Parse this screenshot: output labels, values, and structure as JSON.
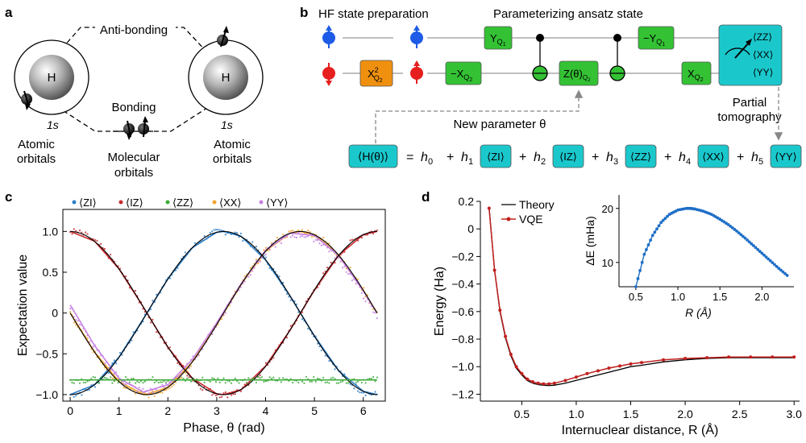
{
  "panel_a": {
    "label": "a",
    "atom": "H",
    "orbital": "1s",
    "anti_bonding": "Anti-bonding",
    "bonding": "Bonding",
    "left_caption": [
      "Atomic",
      "orbitals"
    ],
    "middle_caption": [
      "Molecular",
      "orbitals"
    ],
    "right_caption": [
      "Atomic",
      "orbitals"
    ]
  },
  "panel_b": {
    "label": "b",
    "hf_title": "HF state preparation",
    "ansatz_title": "Parameterizing ansatz state",
    "gates": {
      "xq2_squared": "X",
      "y_q1": "Y",
      "neg_x_q2": "−X",
      "z_theta": "Z(θ)",
      "neg_y_q1": "−Y",
      "x_q2": "X",
      "q1": "Q",
      "q2": "Q",
      "sub1": "1",
      "sub2": "2",
      "sup2": "2"
    },
    "tomo_box": [
      "⟨ZZ⟩",
      "⟨XX⟩",
      "⟨YY⟩"
    ],
    "new_param": "New parameter θ",
    "partial_tomography": [
      "Partial",
      "tomography"
    ],
    "equation": {
      "lhs": "⟨H(θ)⟩",
      "terms": [
        {
          "op": "=",
          "coef": "h",
          "idx": "0",
          "box": ""
        },
        {
          "op": "+",
          "coef": "h",
          "idx": "1",
          "box": "⟨ZI⟩"
        },
        {
          "op": "+",
          "coef": "h",
          "idx": "2",
          "box": "⟨IZ⟩"
        },
        {
          "op": "+",
          "coef": "h",
          "idx": "3",
          "box": "⟨ZZ⟩"
        },
        {
          "op": "+",
          "coef": "h",
          "idx": "4",
          "box": "⟨XX⟩"
        },
        {
          "op": "+",
          "coef": "h",
          "idx": "5",
          "box": "⟨YY⟩"
        }
      ]
    }
  },
  "colors": {
    "cyan": "#1ac8cc",
    "green": "#34c234",
    "orange": "#f0900f",
    "spin_blue": "#1e5be6",
    "spin_red": "#e61e1e",
    "zi": "#2f7fc8",
    "iz": "#c8282d",
    "zz": "#3daa3a",
    "xx": "#f2a52e",
    "yy": "#c680e2",
    "vqe": "#c0201e",
    "inset": "#1f6fc7"
  },
  "chart_data": [
    {
      "panel": "c",
      "type": "scatter",
      "xlabel": "Phase, θ (rad)",
      "ylabel": "Expectation value",
      "xlim": [
        -0.15,
        6.45
      ],
      "ylim": [
        -1.08,
        1.27
      ],
      "x_ticks": [
        0,
        1,
        2,
        3,
        4,
        5,
        6
      ],
      "y_ticks": [
        1.0,
        0.5,
        0,
        -0.5,
        -1.0
      ],
      "y_tick_labels": [
        "1.0",
        "0.5",
        "0",
        "−0.5",
        "−1.0"
      ],
      "legend": [
        "⟨ZI⟩",
        "⟨IZ⟩",
        "⟨ZZ⟩",
        "⟨XX⟩",
        "⟨YY⟩"
      ],
      "legend_position": "top",
      "theory_line_color": "#000000",
      "series": [
        {
          "name": "⟨ZI⟩",
          "key": "zi",
          "model": "-cos",
          "x": [
            0,
            0.5,
            1.0,
            1.5,
            2.0,
            2.5,
            3.0,
            3.14,
            3.5,
            4.0,
            4.5,
            5.0,
            5.5,
            6.0,
            6.28
          ],
          "values": [
            -1.0,
            -0.88,
            -0.54,
            -0.07,
            0.42,
            0.8,
            0.99,
            1.0,
            0.94,
            0.65,
            0.21,
            -0.28,
            -0.71,
            -0.96,
            -1.0
          ]
        },
        {
          "name": "⟨IZ⟩",
          "key": "iz",
          "model": "cos",
          "x": [
            0,
            0.5,
            1.0,
            1.5,
            2.0,
            2.5,
            3.0,
            3.14,
            3.5,
            4.0,
            4.5,
            5.0,
            5.5,
            6.0,
            6.28
          ],
          "values": [
            1.0,
            0.88,
            0.54,
            0.07,
            -0.42,
            -0.8,
            -0.99,
            -1.0,
            -0.94,
            -0.65,
            -0.21,
            0.28,
            0.71,
            0.96,
            1.0
          ]
        },
        {
          "name": "⟨ZZ⟩",
          "key": "zz",
          "model": "const",
          "x": [
            0,
            1,
            2,
            3,
            4,
            5,
            6,
            6.28
          ],
          "values": [
            -0.82,
            -0.82,
            -0.82,
            -0.82,
            -0.82,
            -0.82,
            -0.82,
            -0.82
          ]
        },
        {
          "name": "⟨XX⟩",
          "key": "xx",
          "model": "-sin",
          "x": [
            0,
            0.5,
            1.0,
            1.5,
            1.57,
            2.0,
            2.5,
            3.0,
            3.5,
            4.0,
            4.5,
            4.71,
            5.0,
            5.5,
            6.0,
            6.28
          ],
          "values": [
            0.0,
            -0.48,
            -0.84,
            -1.0,
            -1.0,
            -0.91,
            -0.6,
            -0.14,
            0.35,
            0.76,
            0.98,
            1.0,
            0.96,
            0.71,
            0.28,
            0.0
          ]
        },
        {
          "name": "⟨YY⟩",
          "key": "yy",
          "model": "-sin",
          "x": [
            0,
            0.5,
            1.0,
            1.5,
            2.0,
            2.5,
            3.0,
            3.5,
            4.0,
            4.5,
            5.0,
            5.5,
            6.0,
            6.28
          ],
          "values": [
            0.1,
            -0.4,
            -0.8,
            -0.97,
            -0.88,
            -0.57,
            -0.12,
            0.36,
            0.77,
            0.98,
            0.95,
            0.7,
            0.27,
            0.0
          ]
        }
      ]
    },
    {
      "panel": "d",
      "type": "line",
      "xlabel": "Internuclear distance, R (Å)",
      "ylabel": "Energy (Ha)",
      "xlim": [
        0.12,
        3.05
      ],
      "ylim": [
        -1.25,
        0.2
      ],
      "x_ticks": [
        0.5,
        1.0,
        1.5,
        2.0,
        2.5,
        3.0
      ],
      "x_tick_labels": [
        "0.5",
        "1.0",
        "1.5",
        "2.0",
        "2.5",
        "3.0"
      ],
      "y_ticks": [
        0.2,
        0,
        -0.2,
        -0.4,
        -0.6,
        -0.8,
        -1.0,
        -1.2
      ],
      "y_tick_labels": [
        "0.2",
        "0",
        "−0.2",
        "−0.4",
        "−0.6",
        "−0.8",
        "−1.0",
        "−1.2"
      ],
      "legend": [
        "Theory",
        "VQE"
      ],
      "legend_position": "top-left",
      "series": [
        {
          "name": "Theory",
          "x": [
            0.2,
            0.25,
            0.3,
            0.35,
            0.4,
            0.45,
            0.5,
            0.55,
            0.6,
            0.65,
            0.7,
            0.75,
            0.8,
            0.9,
            1.0,
            1.1,
            1.2,
            1.3,
            1.4,
            1.5,
            1.6,
            1.8,
            2.0,
            2.2,
            2.4,
            2.6,
            2.8,
            3.0
          ],
          "values": [
            0.16,
            -0.3,
            -0.6,
            -0.79,
            -0.92,
            -1.01,
            -1.06,
            -1.1,
            -1.12,
            -1.13,
            -1.135,
            -1.137,
            -1.134,
            -1.12,
            -1.1,
            -1.08,
            -1.06,
            -1.04,
            -1.02,
            -1.0,
            -0.99,
            -0.965,
            -0.95,
            -0.94,
            -0.935,
            -0.935,
            -0.935,
            -0.935
          ]
        },
        {
          "name": "VQE",
          "x": [
            0.2,
            0.25,
            0.3,
            0.35,
            0.4,
            0.45,
            0.5,
            0.55,
            0.6,
            0.65,
            0.7,
            0.75,
            0.8,
            0.9,
            1.0,
            1.1,
            1.2,
            1.3,
            1.4,
            1.5,
            1.6,
            1.8,
            2.0,
            2.2,
            2.4,
            2.6,
            2.8,
            3.0
          ],
          "values": [
            0.15,
            -0.3,
            -0.59,
            -0.78,
            -0.91,
            -1.0,
            -1.05,
            -1.09,
            -1.11,
            -1.12,
            -1.125,
            -1.125,
            -1.12,
            -1.1,
            -1.075,
            -1.05,
            -1.03,
            -1.01,
            -0.995,
            -0.98,
            -0.97,
            -0.95,
            -0.94,
            -0.935,
            -0.93,
            -0.93,
            -0.93,
            -0.93
          ]
        }
      ]
    },
    {
      "panel": "d-inset",
      "type": "scatter",
      "xlabel": "R (Å)",
      "ylabel": "ΔE (mHa)",
      "xlim": [
        0.3,
        2.38
      ],
      "ylim": [
        5.5,
        22.5
      ],
      "x_ticks": [
        0.5,
        1.0,
        1.5,
        2.0
      ],
      "x_tick_labels": [
        "0.5",
        "1.0",
        "1.5",
        "2.0"
      ],
      "y_ticks": [
        10,
        20
      ],
      "y_tick_labels": [
        "10",
        "20"
      ],
      "series": [
        {
          "name": "",
          "x": [
            0.5,
            0.6,
            0.7,
            0.8,
            0.9,
            1.0,
            1.1,
            1.15,
            1.2,
            1.3,
            1.4,
            1.5,
            1.6,
            1.7,
            1.8,
            1.9,
            2.0,
            2.1,
            2.2,
            2.3
          ],
          "values": [
            5.5,
            11.5,
            15.0,
            17.4,
            18.9,
            19.7,
            20.0,
            20.0,
            19.9,
            19.5,
            18.9,
            18.0,
            17.0,
            15.8,
            14.5,
            13.1,
            11.7,
            10.3,
            8.9,
            7.6
          ]
        }
      ]
    }
  ]
}
